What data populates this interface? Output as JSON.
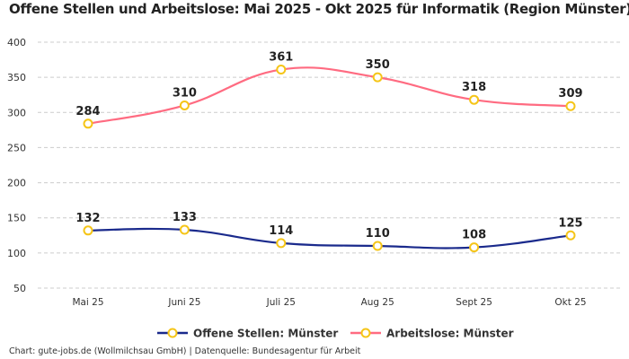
{
  "chart_data": {
    "type": "line",
    "title": "Offene Stellen und Arbeitslose: Mai 2025 - Okt 2025 für Informatik (Region Münster)",
    "categories": [
      "Mai 25",
      "Juni 25",
      "Juli 25",
      "Aug 25",
      "Sept 25",
      "Okt 25"
    ],
    "series": [
      {
        "name": "Offene Stellen: Münster",
        "values": [
          132,
          133,
          114,
          110,
          108,
          125
        ],
        "color": "#1a2a8c"
      },
      {
        "name": "Arbeitslose: Münster",
        "values": [
          284,
          310,
          361,
          350,
          318,
          309
        ],
        "color": "#ff6b81"
      }
    ],
    "marker_color": "#f5c518",
    "yticks": [
      50,
      100,
      150,
      200,
      250,
      300,
      350,
      400
    ],
    "ylim": [
      50,
      400
    ],
    "grid": true,
    "legend": "bottom",
    "xlabel": "",
    "ylabel": ""
  },
  "footer": "Chart: gute-jobs.de (Wollmilchsau GmbH) | Datenquelle: Bundesagentur für Arbeit"
}
